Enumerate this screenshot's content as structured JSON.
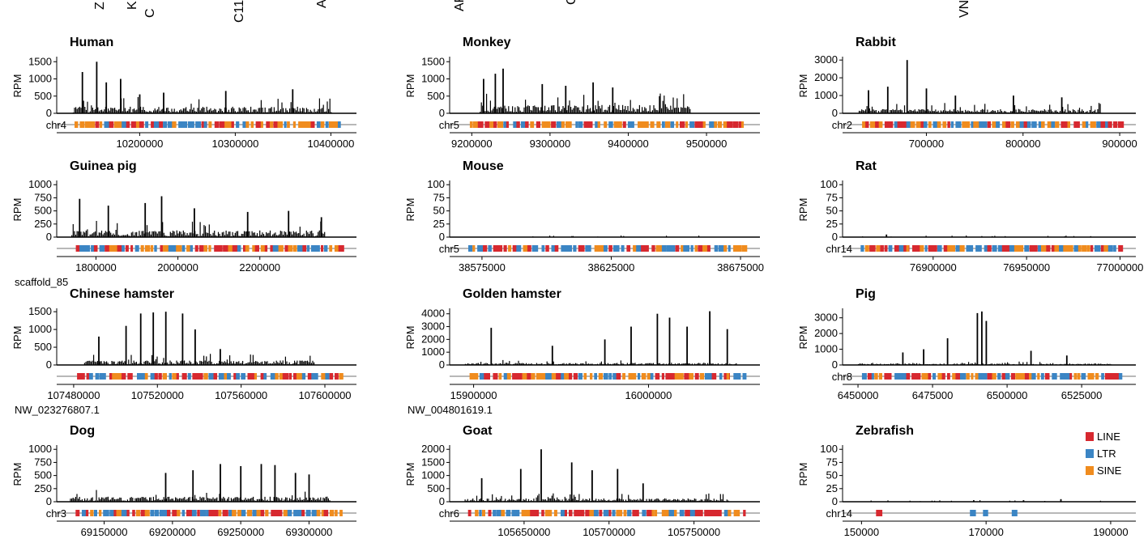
{
  "figure": {
    "header_fragments": [
      "Z",
      "K",
      "C",
      "C11",
      "A",
      "AF",
      "C",
      "VN"
    ]
  },
  "legend": {
    "items": [
      {
        "label": "LINE",
        "color": "#d7282f"
      },
      {
        "label": "LTR",
        "color": "#3b85c4"
      },
      {
        "label": "SINE",
        "color": "#f08c1e"
      }
    ]
  },
  "chart_data": [
    {
      "type": "bar",
      "title": "Human",
      "ylabel": "RPM",
      "chrom": "chr4",
      "scaffold": "",
      "ylim": [
        0,
        1600
      ],
      "yticks": [
        0,
        500,
        1000,
        1500
      ],
      "xlim": [
        10120000,
        10420000
      ],
      "xticks": [
        10200000,
        10300000,
        10400000
      ],
      "signal_range": [
        10130000,
        10400000
      ],
      "peaks": [
        [
          10140000,
          1200
        ],
        [
          10155000,
          1500
        ],
        [
          10165000,
          900
        ],
        [
          10180000,
          1000
        ],
        [
          10200000,
          550
        ],
        [
          10225000,
          600
        ],
        [
          10290000,
          650
        ],
        [
          10360000,
          700
        ]
      ],
      "baseline": 120,
      "te": [
        "LINE",
        "LTR",
        "SINE"
      ]
    },
    {
      "type": "bar",
      "title": "Monkey",
      "ylabel": "RPM",
      "chrom": "chr5",
      "scaffold": "",
      "ylim": [
        0,
        1600
      ],
      "yticks": [
        0,
        500,
        1000,
        1500
      ],
      "xlim": [
        9180000,
        9560000
      ],
      "xticks": [
        9200000,
        9300000,
        9400000,
        9500000
      ],
      "signal_range": [
        9210000,
        9480000
      ],
      "peaks": [
        [
          9215000,
          1000
        ],
        [
          9230000,
          1150
        ],
        [
          9240000,
          1300
        ],
        [
          9290000,
          850
        ],
        [
          9320000,
          800
        ],
        [
          9355000,
          900
        ],
        [
          9380000,
          750
        ],
        [
          9440000,
          500
        ]
      ],
      "baseline": 150,
      "te": [
        "LTR",
        "LINE",
        "SINE"
      ]
    },
    {
      "type": "bar",
      "title": "Rabbit",
      "ylabel": "RPM",
      "chrom": "chr2",
      "scaffold": "",
      "ylim": [
        0,
        3100
      ],
      "yticks": [
        0,
        1000,
        2000,
        3000
      ],
      "xlim": [
        620000,
        910000
      ],
      "xticks": [
        700000,
        800000,
        900000
      ],
      "signal_range": [
        630000,
        880000
      ],
      "peaks": [
        [
          640000,
          1300
        ],
        [
          660000,
          1500
        ],
        [
          680000,
          3000
        ],
        [
          700000,
          1400
        ],
        [
          730000,
          1000
        ],
        [
          790000,
          1000
        ],
        [
          840000,
          900
        ]
      ],
      "baseline": 150,
      "te": [
        "LINE",
        "SINE",
        "LTR"
      ]
    },
    {
      "type": "bar",
      "title": "Guinea pig",
      "ylabel": "RPM",
      "chrom": "",
      "scaffold": "scaffold_85",
      "ylim": [
        0,
        1050
      ],
      "yticks": [
        0,
        250,
        500,
        750,
        1000
      ],
      "xlim": [
        1720000,
        2420000
      ],
      "xticks": [
        1800000,
        2000000,
        2200000
      ],
      "signal_range": [
        1740000,
        2360000
      ],
      "peaks": [
        [
          1760000,
          730
        ],
        [
          1830000,
          600
        ],
        [
          1920000,
          650
        ],
        [
          1960000,
          780
        ],
        [
          2040000,
          550
        ],
        [
          2170000,
          480
        ],
        [
          2270000,
          500
        ],
        [
          2350000,
          380
        ]
      ],
      "baseline": 80,
      "te": [
        "LTR",
        "LINE",
        "SINE"
      ]
    },
    {
      "type": "bar",
      "title": "Mouse",
      "ylabel": "RPM",
      "chrom": "chr5",
      "scaffold": "",
      "ylim": [
        0,
        105
      ],
      "yticks": [
        0,
        25,
        50,
        75,
        100
      ],
      "xlim": [
        38565000,
        38680000
      ],
      "xticks": [
        38575000,
        38625000,
        38675000
      ],
      "signal_range": [
        38590000,
        38662000
      ],
      "peaks": [],
      "baseline": 1,
      "te": [
        "LTR",
        "SINE",
        "LINE"
      ]
    },
    {
      "type": "bar",
      "title": "Rat",
      "ylabel": "RPM",
      "chrom": "chr14",
      "scaffold": "",
      "ylim": [
        0,
        105
      ],
      "yticks": [
        0,
        25,
        50,
        75,
        100
      ],
      "xlim": [
        76855000,
        77005000
      ],
      "xticks": [
        76900000,
        76950000,
        77000000
      ],
      "signal_range": [
        76862000,
        76985000
      ],
      "peaks": [
        [
          76875000,
          5
        ]
      ],
      "baseline": 1,
      "te": [
        "LTR",
        "SINE",
        "LINE"
      ]
    },
    {
      "type": "bar",
      "title": "Chinese hamster",
      "ylabel": "RPM",
      "chrom": "",
      "scaffold": "NW_023276807.1",
      "ylim": [
        0,
        1550
      ],
      "yticks": [
        0,
        500,
        1000,
        1500
      ],
      "xlim": [
        107475000,
        107612000
      ],
      "xticks": [
        107480000,
        107520000,
        107560000,
        107600000
      ],
      "signal_range": [
        107485000,
        107595000
      ],
      "peaks": [
        [
          107492000,
          800
        ],
        [
          107505000,
          1100
        ],
        [
          107512000,
          1450
        ],
        [
          107518000,
          1480
        ],
        [
          107524000,
          1500
        ],
        [
          107532000,
          1450
        ],
        [
          107538000,
          1000
        ],
        [
          107550000,
          450
        ]
      ],
      "baseline": 80,
      "te": [
        "SINE",
        "LTR",
        "LINE"
      ]
    },
    {
      "type": "bar",
      "title": "Golden hamster",
      "ylabel": "RPM",
      "chrom": "",
      "scaffold": "NW_004801619.1",
      "ylim": [
        0,
        4300
      ],
      "yticks": [
        0,
        1000,
        2000,
        3000,
        4000
      ],
      "xlim": [
        15890000,
        16060000
      ],
      "xticks": [
        15900000,
        16000000
      ],
      "signal_range": [
        15895000,
        16050000
      ],
      "peaks": [
        [
          15910000,
          2900
        ],
        [
          15945000,
          1500
        ],
        [
          15975000,
          2000
        ],
        [
          15990000,
          3000
        ],
        [
          16005000,
          4000
        ],
        [
          16012000,
          3700
        ],
        [
          16022000,
          3000
        ],
        [
          16035000,
          4200
        ],
        [
          16045000,
          2800
        ]
      ],
      "baseline": 100,
      "te": [
        "LINE",
        "LTR",
        "SINE"
      ]
    },
    {
      "type": "bar",
      "title": "Pig",
      "ylabel": "RPM",
      "chrom": "chr8",
      "scaffold": "",
      "ylim": [
        0,
        3500
      ],
      "yticks": [
        0,
        1000,
        2000,
        3000
      ],
      "xlim": [
        6447000,
        6541000
      ],
      "xticks": [
        6450000,
        6475000,
        6500000,
        6525000
      ],
      "signal_range": [
        6450000,
        6536000
      ],
      "peaks": [
        [
          6465000,
          800
        ],
        [
          6472000,
          1000
        ],
        [
          6480000,
          1700
        ],
        [
          6490000,
          3300
        ],
        [
          6491500,
          3400
        ],
        [
          6493000,
          2800
        ],
        [
          6508000,
          900
        ],
        [
          6520000,
          600
        ]
      ],
      "baseline": 60,
      "te": [
        "LINE",
        "LTR",
        "SINE"
      ]
    },
    {
      "type": "bar",
      "title": "Dog",
      "ylabel": "RPM",
      "chrom": "chr3",
      "scaffold": "",
      "ylim": [
        0,
        1050
      ],
      "yticks": [
        0,
        250,
        500,
        750,
        1000
      ],
      "xlim": [
        69120000,
        69330000
      ],
      "xticks": [
        69150000,
        69200000,
        69250000,
        69300000
      ],
      "signal_range": [
        69125000,
        69315000
      ],
      "peaks": [
        [
          69195000,
          550
        ],
        [
          69215000,
          600
        ],
        [
          69235000,
          720
        ],
        [
          69250000,
          680
        ],
        [
          69265000,
          720
        ],
        [
          69275000,
          700
        ],
        [
          69290000,
          550
        ],
        [
          69300000,
          520
        ]
      ],
      "baseline": 60,
      "te": [
        "LINE",
        "LTR",
        "SINE"
      ]
    },
    {
      "type": "bar",
      "title": "Goat",
      "ylabel": "RPM",
      "chrom": "chr6",
      "scaffold": "",
      "ylim": [
        0,
        2100
      ],
      "yticks": [
        0,
        500,
        1000,
        1500,
        2000
      ],
      "xlim": [
        105610000,
        105785000
      ],
      "xticks": [
        105650000,
        105700000,
        105750000
      ],
      "signal_range": [
        105615000,
        105770000
      ],
      "peaks": [
        [
          105625000,
          900
        ],
        [
          105648000,
          1250
        ],
        [
          105660000,
          2000
        ],
        [
          105678000,
          1500
        ],
        [
          105690000,
          1200
        ],
        [
          105705000,
          1250
        ],
        [
          105720000,
          700
        ]
      ],
      "baseline": 80,
      "te": [
        "LINE",
        "SINE",
        "LTR"
      ]
    },
    {
      "type": "bar",
      "title": "Zebrafish",
      "ylabel": "RPM",
      "chrom": "chr14",
      "scaffold": "",
      "ylim": [
        0,
        105
      ],
      "yticks": [
        0,
        25,
        50,
        75,
        100
      ],
      "xlim": [
        148000,
        193000
      ],
      "xticks": [
        150000,
        170000,
        190000
      ],
      "signal_range": [
        150000,
        190000
      ],
      "peaks": [
        [
          168000,
          3
        ],
        [
          176000,
          3
        ],
        [
          182000,
          5
        ]
      ],
      "baseline": 0,
      "te": [
        "LINE",
        "LTR"
      ]
    }
  ]
}
